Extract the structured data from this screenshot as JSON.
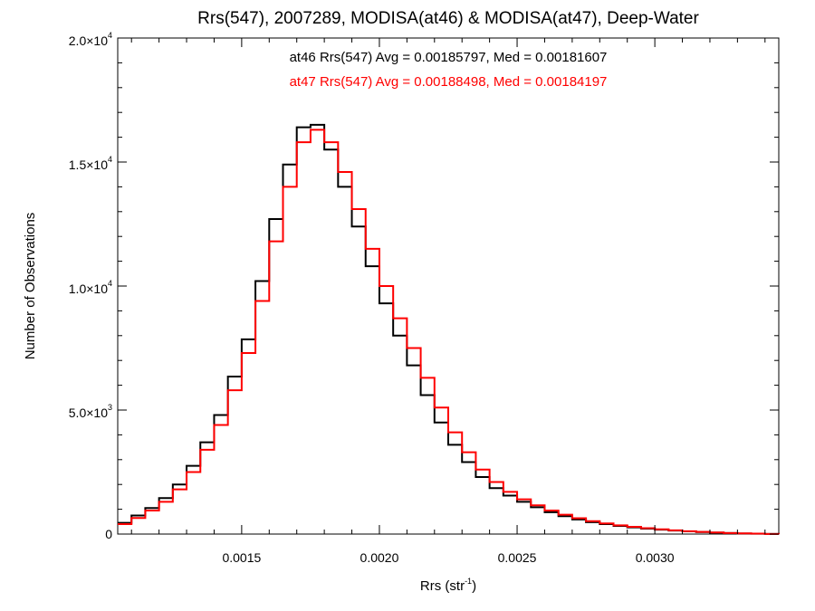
{
  "chart_data": {
    "type": "histogram",
    "title": "Rrs(547), 2007289, MODISA(at46) & MODISA(at47), Deep-Water",
    "xlabel": "Rrs (str-1)",
    "xlabel_main": "Rrs (str",
    "xlabel_sup": "-1",
    "xlabel_close": ")",
    "ylabel": "Number of Observations",
    "xlim": [
      0.00105,
      0.00345
    ],
    "ylim": [
      0,
      20000
    ],
    "x_ticks": [
      {
        "value": 0.0015,
        "label": "0.0015"
      },
      {
        "value": 0.002,
        "label": "0.0020"
      },
      {
        "value": 0.0025,
        "label": "0.0025"
      },
      {
        "value": 0.003,
        "label": "0.0030"
      }
    ],
    "y_ticks": [
      {
        "value": 0,
        "label": "0",
        "sup": ""
      },
      {
        "value": 5000,
        "label": "5.0×10",
        "sup": "3"
      },
      {
        "value": 10000,
        "label": "1.0×10",
        "sup": "4"
      },
      {
        "value": 15000,
        "label": "1.5×10",
        "sup": "4"
      },
      {
        "value": 20000,
        "label": "2.0×10",
        "sup": "4"
      }
    ],
    "annotations": [
      {
        "text": "at46 Rrs(547) Avg = 0.00185797, Med = 0.00181607",
        "color": "#000000"
      },
      {
        "text": "at47 Rrs(547) Avg = 0.00188498, Med = 0.00184197",
        "color": "#ff0000"
      }
    ],
    "series": [
      {
        "name": "at46",
        "color": "#000000",
        "x": [
          0.00105,
          0.0011,
          0.00115,
          0.0012,
          0.00125,
          0.0013,
          0.00135,
          0.0014,
          0.00145,
          0.0015,
          0.00155,
          0.0016,
          0.00165,
          0.0017,
          0.00175,
          0.0018,
          0.00185,
          0.0019,
          0.00195,
          0.002,
          0.00205,
          0.0021,
          0.00215,
          0.0022,
          0.00225,
          0.0023,
          0.00235,
          0.0024,
          0.00245,
          0.0025,
          0.00255,
          0.0026,
          0.00265,
          0.0027,
          0.00275,
          0.0028,
          0.00285,
          0.0029,
          0.00295,
          0.003,
          0.00305,
          0.0031,
          0.00315,
          0.0032,
          0.00325,
          0.0033,
          0.00335,
          0.0034,
          0.00345
        ],
        "y": [
          450,
          750,
          1050,
          1450,
          2000,
          2750,
          3700,
          4800,
          6350,
          7850,
          10200,
          12700,
          14900,
          16400,
          16500,
          15500,
          14000,
          12400,
          10800,
          9300,
          8000,
          6800,
          5600,
          4500,
          3600,
          2900,
          2300,
          1850,
          1550,
          1300,
          1080,
          880,
          720,
          590,
          480,
          400,
          330,
          270,
          220,
          180,
          140,
          110,
          80,
          60,
          40,
          25,
          15,
          5,
          0
        ]
      },
      {
        "name": "at47",
        "color": "#ff0000",
        "x": [
          0.00105,
          0.0011,
          0.00115,
          0.0012,
          0.00125,
          0.0013,
          0.00135,
          0.0014,
          0.00145,
          0.0015,
          0.00155,
          0.0016,
          0.00165,
          0.0017,
          0.00175,
          0.0018,
          0.00185,
          0.0019,
          0.00195,
          0.002,
          0.00205,
          0.0021,
          0.00215,
          0.0022,
          0.00225,
          0.0023,
          0.00235,
          0.0024,
          0.00245,
          0.0025,
          0.00255,
          0.0026,
          0.00265,
          0.0027,
          0.00275,
          0.0028,
          0.00285,
          0.0029,
          0.00295,
          0.003,
          0.00305,
          0.0031,
          0.00315,
          0.0032,
          0.00325,
          0.0033,
          0.00335,
          0.0034,
          0.00345
        ],
        "y": [
          400,
          650,
          950,
          1300,
          1800,
          2500,
          3400,
          4400,
          5800,
          7300,
          9400,
          11800,
          14000,
          15800,
          16300,
          15800,
          14600,
          13100,
          11500,
          10000,
          8700,
          7500,
          6300,
          5100,
          4100,
          3300,
          2600,
          2100,
          1700,
          1400,
          1160,
          950,
          780,
          640,
          520,
          430,
          350,
          290,
          235,
          190,
          150,
          115,
          85,
          62,
          42,
          27,
          16,
          6,
          0
        ]
      }
    ]
  }
}
